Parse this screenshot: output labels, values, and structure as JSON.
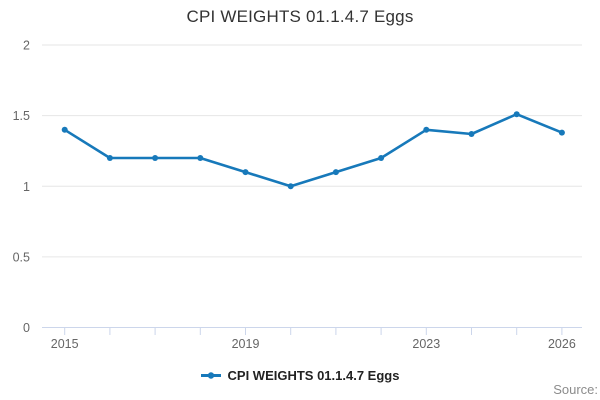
{
  "title": "CPI WEIGHTS 01.1.4.7 Eggs",
  "legend": {
    "label": "CPI WEIGHTS 01.1.4.7 Eggs"
  },
  "source_label": "Source:",
  "colors": {
    "line": "#1779ba",
    "grid": "#e6e6e6",
    "axis": "#ccd6eb",
    "tick": "#ccd6eb",
    "axis_label": "#666666",
    "title": "#333333"
  },
  "chart_data": {
    "type": "line",
    "title": "CPI WEIGHTS 01.1.4.7 Eggs",
    "x": [
      2015,
      2016,
      2017,
      2018,
      2019,
      2020,
      2021,
      2022,
      2023,
      2024,
      2025,
      2026
    ],
    "series": [
      {
        "name": "CPI WEIGHTS 01.1.4.7 Eggs",
        "values": [
          1.4,
          1.2,
          1.2,
          1.2,
          1.1,
          1.0,
          1.1,
          1.2,
          1.4,
          1.37,
          1.51,
          1.38
        ]
      }
    ],
    "xlabel": "",
    "ylabel": "",
    "ylim": [
      0,
      2
    ],
    "yticks": [
      0,
      0.5,
      1,
      1.5,
      2
    ],
    "ytick_labels": [
      "0",
      "0.5",
      "1",
      "1.5",
      "2"
    ],
    "xtick_years": [
      2015,
      2019,
      2023,
      2026
    ],
    "xtick_labels": [
      "2015",
      "2019",
      "2023",
      "2026"
    ],
    "grid": true,
    "legend_position": "bottom"
  }
}
